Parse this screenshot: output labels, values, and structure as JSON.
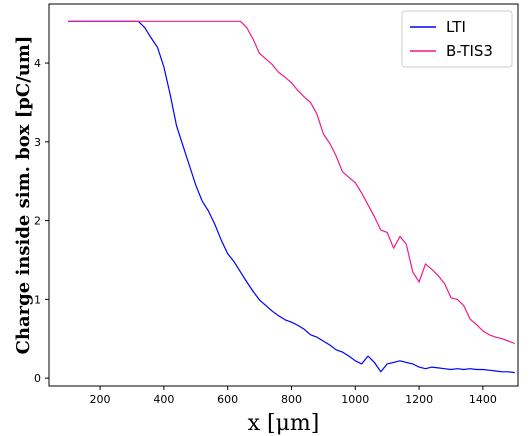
{
  "chart_data": {
    "type": "line",
    "xlabel": "x [μm]",
    "ylabel": "Charge inside sim.  box  [pC/um]",
    "xlim": [
      40,
      1510
    ],
    "ylim": [
      -0.1,
      4.75
    ],
    "xticks": [
      200,
      400,
      600,
      800,
      1000,
      1200,
      1400
    ],
    "yticks": [
      0,
      1,
      2,
      3,
      4
    ],
    "legend_position": "upper right",
    "series": [
      {
        "name": "LTI",
        "color": "#0000ff",
        "x": [
          100,
          320,
          340,
          360,
          380,
          400,
          420,
          440,
          460,
          480,
          500,
          520,
          540,
          560,
          580,
          600,
          620,
          640,
          660,
          680,
          700,
          720,
          740,
          760,
          780,
          800,
          820,
          840,
          860,
          880,
          900,
          920,
          940,
          960,
          980,
          1000,
          1020,
          1040,
          1060,
          1080,
          1100,
          1120,
          1140,
          1160,
          1180,
          1200,
          1220,
          1240,
          1260,
          1280,
          1300,
          1320,
          1340,
          1360,
          1380,
          1400,
          1420,
          1440,
          1460,
          1480,
          1500
        ],
        "y": [
          4.53,
          4.53,
          4.45,
          4.32,
          4.2,
          3.95,
          3.6,
          3.2,
          2.95,
          2.7,
          2.45,
          2.25,
          2.12,
          1.95,
          1.75,
          1.58,
          1.48,
          1.35,
          1.22,
          1.1,
          0.99,
          0.92,
          0.85,
          0.79,
          0.74,
          0.71,
          0.67,
          0.62,
          0.55,
          0.52,
          0.47,
          0.42,
          0.36,
          0.33,
          0.28,
          0.22,
          0.18,
          0.28,
          0.2,
          0.08,
          0.18,
          0.2,
          0.22,
          0.2,
          0.18,
          0.14,
          0.12,
          0.14,
          0.13,
          0.12,
          0.11,
          0.12,
          0.11,
          0.12,
          0.11,
          0.11,
          0.1,
          0.09,
          0.08,
          0.08,
          0.07
        ]
      },
      {
        "name": "B-TIS3",
        "color": "#ee1a8a",
        "x": [
          100,
          640,
          660,
          680,
          700,
          720,
          740,
          760,
          780,
          800,
          820,
          840,
          860,
          880,
          900,
          920,
          940,
          960,
          980,
          1000,
          1020,
          1040,
          1060,
          1080,
          1100,
          1120,
          1140,
          1160,
          1180,
          1200,
          1220,
          1240,
          1260,
          1280,
          1300,
          1320,
          1340,
          1360,
          1380,
          1400,
          1420,
          1440,
          1460,
          1480,
          1500
        ],
        "y": [
          4.53,
          4.53,
          4.45,
          4.3,
          4.12,
          4.05,
          3.98,
          3.88,
          3.82,
          3.75,
          3.65,
          3.57,
          3.5,
          3.35,
          3.1,
          2.98,
          2.82,
          2.62,
          2.55,
          2.48,
          2.35,
          2.2,
          2.05,
          1.88,
          1.85,
          1.65,
          1.8,
          1.7,
          1.35,
          1.22,
          1.45,
          1.38,
          1.3,
          1.2,
          1.02,
          1.0,
          0.92,
          0.75,
          0.68,
          0.6,
          0.55,
          0.52,
          0.5,
          0.47,
          0.44
        ]
      }
    ]
  }
}
